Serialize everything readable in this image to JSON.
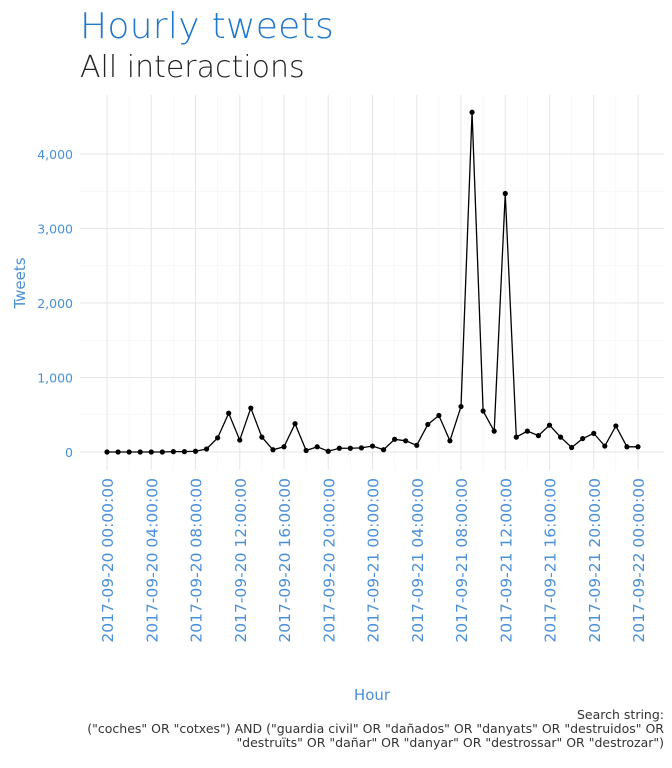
{
  "header": {
    "title": "Hourly tweets",
    "subtitle": "All interactions"
  },
  "caption": {
    "line1": "Search string:",
    "line2": "(\"coches\" OR \"cotxes\") AND (\"guardia civil\" OR \"dañados\" OR \"danyats\" OR \"destruidos\" OR",
    "line3": "\"destruïts\" OR \"dañar\" OR \"danyar\" OR \"destrossar\" OR \"destrozar\")"
  },
  "colors": {
    "title": "#1f77c9",
    "axis_text": "#4a90d9",
    "line": "#000000",
    "grid": "#e6e6e6"
  },
  "chart_data": {
    "type": "line",
    "xlabel": "Hour",
    "ylabel": "Tweets",
    "x_start": "2017-09-20 00:00:00",
    "x_step_hours": 1,
    "y_ticks": [
      0,
      1000,
      2000,
      3000,
      4000
    ],
    "y_tick_labels": [
      "0",
      "1,000",
      "2,000",
      "3,000",
      "4,000"
    ],
    "x_tick_labels": [
      "2017-09-20 00:00:00",
      "2017-09-20 04:00:00",
      "2017-09-20 08:00:00",
      "2017-09-20 12:00:00",
      "2017-09-20 16:00:00",
      "2017-09-20 20:00:00",
      "2017-09-21 00:00:00",
      "2017-09-21 04:00:00",
      "2017-09-21 08:00:00",
      "2017-09-21 12:00:00",
      "2017-09-21 16:00:00",
      "2017-09-21 20:00:00",
      "2017-09-22 00:00:00"
    ],
    "ylim": [
      -80,
      4700
    ],
    "grid": true,
    "series": [
      {
        "values": [
          0,
          0,
          0,
          0,
          0,
          0,
          5,
          5,
          10,
          40,
          190,
          520,
          160,
          590,
          200,
          30,
          70,
          380,
          20,
          70,
          10,
          50,
          50,
          55,
          80,
          30,
          170,
          150,
          90,
          370,
          490,
          150,
          610,
          4560,
          550,
          280,
          3470,
          200,
          280,
          220,
          360,
          200,
          60,
          180,
          250,
          80,
          350,
          70,
          70
        ]
      }
    ]
  }
}
